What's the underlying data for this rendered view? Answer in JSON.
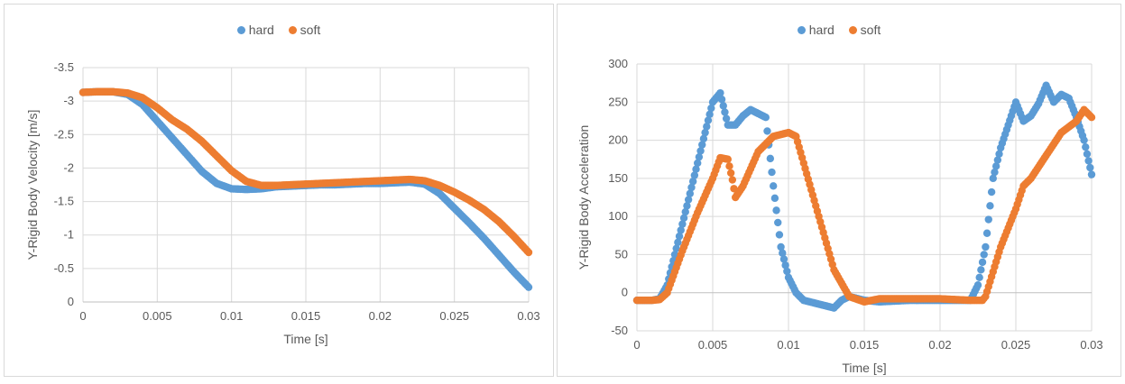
{
  "colors": {
    "hard": "#5b9bd5",
    "soft": "#ed7d31",
    "grid": "#d9d9d9",
    "axis": "#bfbfbf",
    "text": "#595959"
  },
  "chart_data": [
    {
      "type": "scatter",
      "title": "",
      "xlabel": "Time [s]",
      "ylabel": "Y-Rigid Body Velocity [m/s]",
      "xlim": [
        0,
        0.03
      ],
      "ylim": [
        -3.5,
        0
      ],
      "y_axis_reversed": true,
      "grid": true,
      "legend_position": "top",
      "x_ticks": [
        "0",
        "0.005",
        "0.01",
        "0.015",
        "0.02",
        "0.025",
        "0.03"
      ],
      "y_ticks": [
        "0",
        "-0.5",
        "-1",
        "-1.5",
        "-2",
        "-2.5",
        "-3",
        "-3.5"
      ],
      "series": [
        {
          "name": "hard",
          "color": "#5b9bd5",
          "x": [
            0,
            0.001,
            0.002,
            0.003,
            0.004,
            0.005,
            0.006,
            0.007,
            0.008,
            0.009,
            0.01,
            0.011,
            0.012,
            0.013,
            0.014,
            0.015,
            0.016,
            0.017,
            0.018,
            0.019,
            0.02,
            0.021,
            0.022,
            0.023,
            0.024,
            0.025,
            0.026,
            0.027,
            0.028,
            0.029,
            0.03
          ],
          "y": [
            -3.13,
            -3.14,
            -3.14,
            -3.1,
            -2.95,
            -2.7,
            -2.45,
            -2.2,
            -1.95,
            -1.77,
            -1.69,
            -1.68,
            -1.69,
            -1.72,
            -1.73,
            -1.74,
            -1.75,
            -1.75,
            -1.76,
            -1.77,
            -1.77,
            -1.78,
            -1.79,
            -1.76,
            -1.62,
            -1.4,
            -1.18,
            -0.95,
            -0.7,
            -0.45,
            -0.22
          ]
        },
        {
          "name": "soft",
          "color": "#ed7d31",
          "x": [
            0,
            0.001,
            0.002,
            0.003,
            0.004,
            0.005,
            0.006,
            0.007,
            0.008,
            0.009,
            0.01,
            0.011,
            0.012,
            0.013,
            0.014,
            0.015,
            0.016,
            0.017,
            0.018,
            0.019,
            0.02,
            0.021,
            0.022,
            0.023,
            0.024,
            0.025,
            0.026,
            0.027,
            0.028,
            0.029,
            0.03
          ],
          "y": [
            -3.13,
            -3.14,
            -3.14,
            -3.12,
            -3.05,
            -2.9,
            -2.72,
            -2.58,
            -2.4,
            -2.18,
            -1.96,
            -1.8,
            -1.74,
            -1.74,
            -1.75,
            -1.76,
            -1.77,
            -1.78,
            -1.79,
            -1.8,
            -1.81,
            -1.82,
            -1.83,
            -1.81,
            -1.74,
            -1.64,
            -1.52,
            -1.38,
            -1.2,
            -0.98,
            -0.74
          ]
        }
      ]
    },
    {
      "type": "scatter",
      "title": "",
      "xlabel": "Time [s]",
      "ylabel": "Y-Rigid Body Acceleration",
      "xlim": [
        0,
        0.03
      ],
      "ylim": [
        -50,
        300
      ],
      "grid": true,
      "legend_position": "top",
      "x_ticks": [
        "0",
        "0.005",
        "0.01",
        "0.015",
        "0.02",
        "0.025",
        "0.03"
      ],
      "y_ticks": [
        "-50",
        "0",
        "50",
        "100",
        "150",
        "200",
        "250",
        "300"
      ],
      "series": [
        {
          "name": "hard",
          "color": "#5b9bd5",
          "x": [
            0,
            0.001,
            0.0015,
            0.002,
            0.003,
            0.004,
            0.005,
            0.0055,
            0.006,
            0.0065,
            0.007,
            0.0075,
            0.008,
            0.0085,
            0.009,
            0.0095,
            0.01,
            0.0105,
            0.011,
            0.012,
            0.013,
            0.0135,
            0.014,
            0.015,
            0.016,
            0.018,
            0.02,
            0.022,
            0.0225,
            0.023,
            0.0235,
            0.024,
            0.025,
            0.0255,
            0.026,
            0.0265,
            0.027,
            0.0275,
            0.028,
            0.0285,
            0.029,
            0.0295,
            0.03
          ],
          "y": [
            -10,
            -10,
            -8,
            10,
            90,
            170,
            250,
            262,
            220,
            220,
            232,
            240,
            235,
            230,
            140,
            60,
            20,
            0,
            -10,
            -15,
            -20,
            -10,
            -5,
            -10,
            -12,
            -10,
            -10,
            -10,
            10,
            60,
            150,
            190,
            250,
            225,
            232,
            248,
            272,
            250,
            260,
            255,
            230,
            200,
            155
          ]
        },
        {
          "name": "soft",
          "color": "#ed7d31",
          "x": [
            0,
            0.001,
            0.0015,
            0.002,
            0.003,
            0.004,
            0.005,
            0.0055,
            0.006,
            0.0063,
            0.0065,
            0.007,
            0.008,
            0.009,
            0.01,
            0.0105,
            0.011,
            0.012,
            0.013,
            0.014,
            0.015,
            0.016,
            0.018,
            0.02,
            0.022,
            0.0228,
            0.023,
            0.024,
            0.025,
            0.0255,
            0.026,
            0.027,
            0.028,
            0.029,
            0.0295,
            0.03
          ],
          "y": [
            -10,
            -10,
            -9,
            0,
            55,
            105,
            150,
            177,
            175,
            148,
            125,
            140,
            185,
            205,
            210,
            205,
            170,
            100,
            30,
            -5,
            -12,
            -8,
            -8,
            -8,
            -10,
            -10,
            -5,
            60,
            110,
            140,
            150,
            180,
            210,
            225,
            240,
            230
          ]
        }
      ]
    }
  ]
}
